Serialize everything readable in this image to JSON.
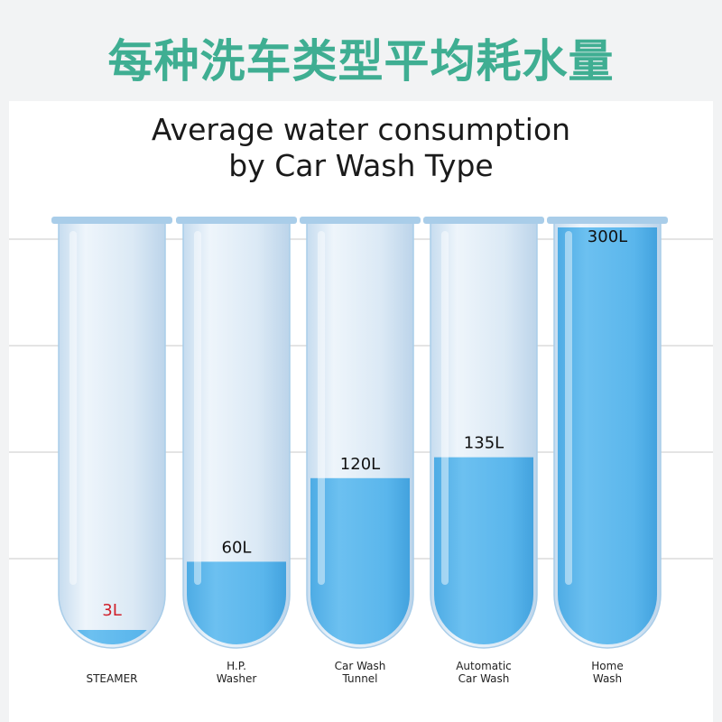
{
  "header": {
    "cn_title": "每种洗车类型平均耗水量"
  },
  "colors": {
    "title": "#3fae92",
    "water": "#5db8ec",
    "tube_glass": "#d7e8f6",
    "tube_rim": "#a9cde9",
    "value_label": "#111111",
    "value_label_low": "#d0202b"
  },
  "chart_data": {
    "type": "bar",
    "title": "Average water consumption by Car Wash Type",
    "title_lines": [
      "Average water consumption",
      "by Car Wash Type"
    ],
    "categories": [
      "STEAMER",
      "H.P. Washer",
      "Car Wash Tunnel",
      "Automatic Car Wash",
      "Home Wash"
    ],
    "category_lines": [
      [
        "STEAMER"
      ],
      [
        "H.P.",
        "Washer"
      ],
      [
        "Car Wash",
        "Tunnel"
      ],
      [
        "Automatic",
        "Car Wash"
      ],
      [
        "Home",
        "Wash"
      ]
    ],
    "values": [
      3,
      60,
      120,
      135,
      300
    ],
    "value_labels": [
      "3L",
      "60L",
      "120L",
      "135L",
      "300L"
    ],
    "unit": "L",
    "ylim": [
      0,
      300
    ],
    "grid": true,
    "legend": "none"
  }
}
